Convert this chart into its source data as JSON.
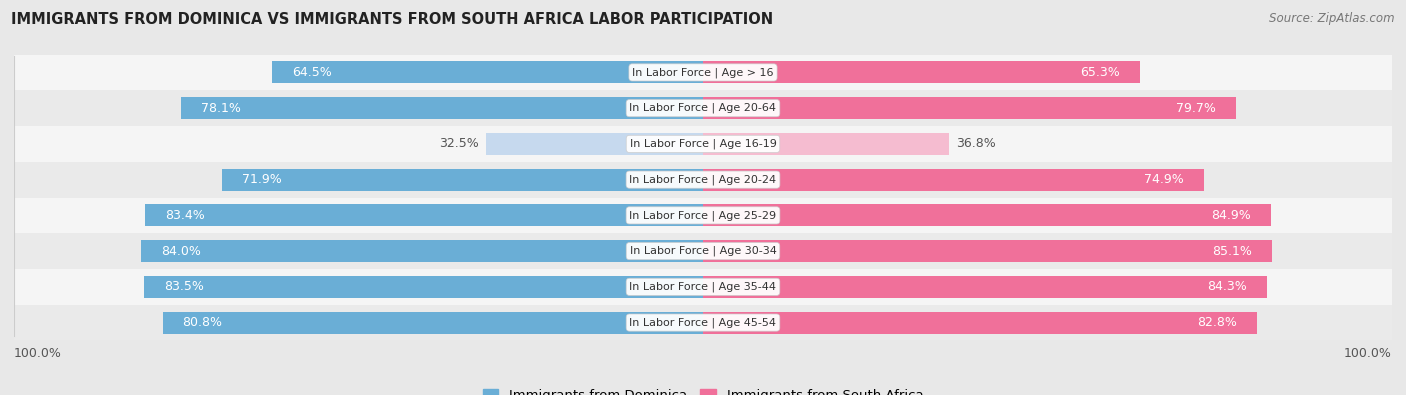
{
  "title": "IMMIGRANTS FROM DOMINICA VS IMMIGRANTS FROM SOUTH AFRICA LABOR PARTICIPATION",
  "source": "Source: ZipAtlas.com",
  "categories": [
    "In Labor Force | Age > 16",
    "In Labor Force | Age 20-64",
    "In Labor Force | Age 16-19",
    "In Labor Force | Age 20-24",
    "In Labor Force | Age 25-29",
    "In Labor Force | Age 30-34",
    "In Labor Force | Age 35-44",
    "In Labor Force | Age 45-54"
  ],
  "dominica_values": [
    64.5,
    78.1,
    32.5,
    71.9,
    83.4,
    84.0,
    83.5,
    80.8
  ],
  "south_africa_values": [
    65.3,
    79.7,
    36.8,
    74.9,
    84.9,
    85.1,
    84.3,
    82.8
  ],
  "dominica_color": "#6aaed6",
  "south_africa_color": "#f0709a",
  "dominica_light_color": "#c6d9ee",
  "south_africa_light_color": "#f5bcd0",
  "bg_outer": "#e8e8e8",
  "row_colors": [
    "#f5f5f5",
    "#eaeaea"
  ],
  "bar_height": 0.62,
  "label_fontsize": 9.0,
  "title_fontsize": 10.5,
  "legend_fontsize": 9.5,
  "max_value": 100.0,
  "xlim": 100.0
}
